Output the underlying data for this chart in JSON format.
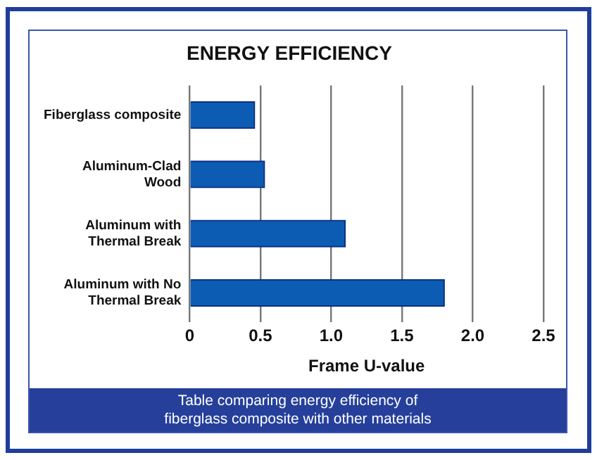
{
  "chart_data": {
    "type": "bar",
    "orientation": "horizontal",
    "title": "ENERGY EFFICIENCY",
    "xlabel": "Frame U-value",
    "categories": [
      "Fiberglass composite",
      "Aluminum-Clad\nWood",
      "Aluminum with\nThermal Break",
      "Aluminum with No\nThermal Break"
    ],
    "values": [
      0.46,
      0.53,
      1.1,
      1.8
    ],
    "color": "#0d5cb3",
    "xlim": [
      0,
      2.5
    ],
    "xticks": [
      0,
      {
        "value": 0.5,
        "label": "0.5"
      },
      {
        "value": 1,
        "label": "1.0"
      },
      {
        "value": 1.5,
        "label": "1.5"
      },
      {
        "value": 2,
        "label": "2.0"
      },
      {
        "value": 2.5,
        "label": "2.5"
      }
    ],
    "grid": "x",
    "legend": false,
    "annotations": [
      "Table comparing energy efficiency of\nfiberglass composite with other materials"
    ]
  }
}
